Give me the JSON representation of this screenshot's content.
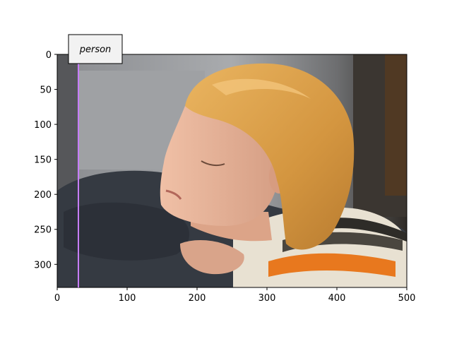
{
  "annotation": {
    "label": "person",
    "line_color": "#c77dff"
  },
  "axes": {
    "xticks": [
      "0",
      "100",
      "200",
      "300",
      "400",
      "500"
    ],
    "yticks": [
      "0",
      "50",
      "100",
      "150",
      "200",
      "250",
      "300"
    ]
  },
  "colors": {
    "hair": "#d9a24a",
    "skin": "#e8b394",
    "sweater_dark": "#3a3f47",
    "stripe_orange": "#e8781e",
    "stripe_cream": "#e9e2d3",
    "background": "#8f9298"
  }
}
